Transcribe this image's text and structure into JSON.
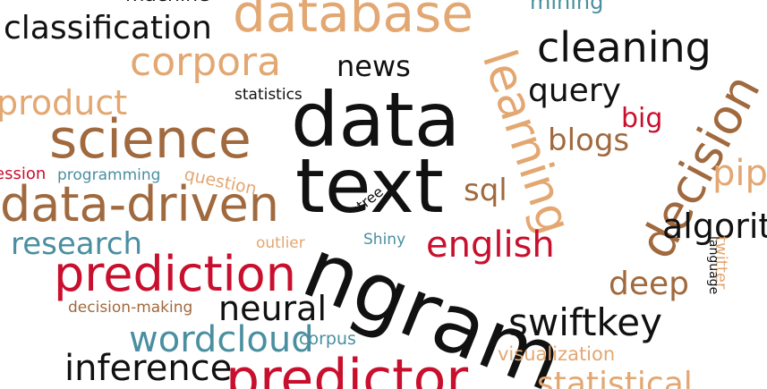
{
  "colors": {
    "black": "#111111",
    "orange": "#e3a772",
    "brown": "#a0693e",
    "red": "#c8102e",
    "teal": "#4a8fa0",
    "background": "#ffffff"
  },
  "words": [
    {
      "text": "classification",
      "color": "black"
    },
    {
      "text": "machine",
      "color": "black"
    },
    {
      "text": "database",
      "color": "orange"
    },
    {
      "text": "mining",
      "color": "teal"
    },
    {
      "text": "cleaning",
      "color": "black"
    },
    {
      "text": "corpora",
      "color": "orange"
    },
    {
      "text": "news",
      "color": "black"
    },
    {
      "text": "learning",
      "color": "orange"
    },
    {
      "text": "query",
      "color": "black"
    },
    {
      "text": "statistics",
      "color": "black"
    },
    {
      "text": "product",
      "color": "orange"
    },
    {
      "text": "data",
      "color": "black"
    },
    {
      "text": "big",
      "color": "red"
    },
    {
      "text": "science",
      "color": "brown"
    },
    {
      "text": "blogs",
      "color": "brown"
    },
    {
      "text": "decision",
      "color": "brown"
    },
    {
      "text": "ession",
      "color": "red"
    },
    {
      "text": "programming",
      "color": "teal"
    },
    {
      "text": "question",
      "color": "orange"
    },
    {
      "text": "text",
      "color": "black"
    },
    {
      "text": "pipe",
      "color": "orange"
    },
    {
      "text": "data-driven",
      "color": "brown"
    },
    {
      "text": "tree",
      "color": "black"
    },
    {
      "text": "sql",
      "color": "brown"
    },
    {
      "text": "algorit",
      "color": "black"
    },
    {
      "text": "research",
      "color": "teal"
    },
    {
      "text": "outlier",
      "color": "orange"
    },
    {
      "text": "Shiny",
      "color": "teal"
    },
    {
      "text": "english",
      "color": "red"
    },
    {
      "text": "twitter",
      "color": "orange"
    },
    {
      "text": "language",
      "color": "black"
    },
    {
      "text": "prediction",
      "color": "red"
    },
    {
      "text": "ngram",
      "color": "black"
    },
    {
      "text": "deep",
      "color": "brown"
    },
    {
      "text": "decision-making",
      "color": "brown"
    },
    {
      "text": "neural",
      "color": "black"
    },
    {
      "text": "swiftkey",
      "color": "black"
    },
    {
      "text": "wordcloud",
      "color": "teal"
    },
    {
      "text": "corpus",
      "color": "teal"
    },
    {
      "text": "inference",
      "color": "black"
    },
    {
      "text": "visualization",
      "color": "orange"
    },
    {
      "text": "predictor",
      "color": "red"
    },
    {
      "text": "statistical",
      "color": "orange"
    }
  ]
}
